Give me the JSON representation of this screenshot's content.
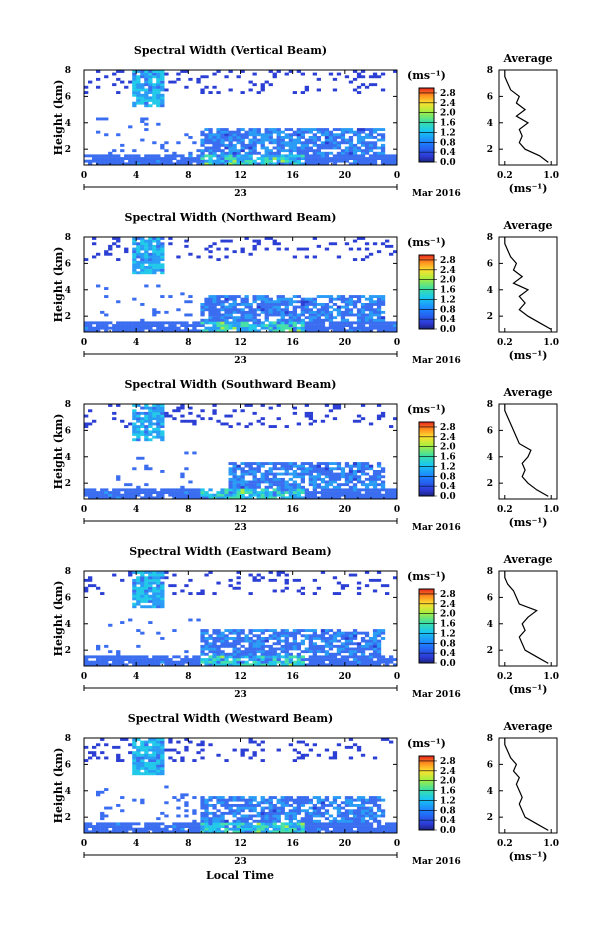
{
  "figure": {
    "xlabel": "Local Time",
    "date_day": "23",
    "date_month": "Mar 2016",
    "ylabel": "Height (km)",
    "cb_unit": "(ms⁻¹)",
    "avg_title": "Average",
    "avg_xlabel": "(ms⁻¹)"
  },
  "chart_data": [
    {
      "type": "heatmap",
      "title": "Spectral Width (Vertical Beam)",
      "xlabel": "Local Time",
      "ylabel": "Height (km)",
      "x_ticks": [
        "0",
        "4",
        "8",
        "12",
        "16",
        "20",
        "0"
      ],
      "y_ticks": [
        "2",
        "4",
        "6",
        "8"
      ],
      "xlim": [
        0,
        24
      ],
      "ylim": [
        0.8,
        8
      ],
      "colorbar": {
        "label": "(ms⁻¹)",
        "ticks": [
          "0.0",
          "0.4",
          "0.8",
          "1.2",
          "1.6",
          "2.0",
          "2.4",
          "2.8"
        ],
        "range": [
          0,
          3.0
        ]
      },
      "average_profile": {
        "title": "Average",
        "xlabel": "(ms⁻¹)",
        "x_ticks": [
          "0.2",
          "1.0"
        ],
        "y_ticks": [
          "2",
          "4",
          "6",
          "8"
        ],
        "xlim": [
          0.1,
          1.1
        ],
        "ylim": [
          0.8,
          8
        ],
        "height": [
          1.0,
          1.5,
          2.0,
          2.5,
          3.0,
          3.5,
          4.0,
          4.5,
          5.0,
          5.5,
          6.0,
          6.5,
          7.0,
          7.5,
          8.0
        ],
        "value": [
          0.95,
          0.8,
          0.55,
          0.45,
          0.5,
          0.45,
          0.6,
          0.4,
          0.55,
          0.4,
          0.45,
          0.3,
          0.25,
          0.2,
          0.2
        ]
      }
    },
    {
      "type": "heatmap",
      "title": "Spectral Width (Northward Beam)",
      "xlabel": "Local Time",
      "ylabel": "Height (km)",
      "x_ticks": [
        "0",
        "4",
        "8",
        "12",
        "16",
        "20",
        "0"
      ],
      "y_ticks": [
        "2",
        "4",
        "6",
        "8"
      ],
      "xlim": [
        0,
        24
      ],
      "ylim": [
        0.8,
        8
      ],
      "colorbar": {
        "label": "(ms⁻¹)",
        "ticks": [
          "0.0",
          "0.4",
          "0.8",
          "1.2",
          "1.6",
          "2.0",
          "2.4",
          "2.8"
        ],
        "range": [
          0,
          3.0
        ]
      },
      "average_profile": {
        "title": "Average",
        "xlabel": "(ms⁻¹)",
        "x_ticks": [
          "0.2",
          "1.0"
        ],
        "y_ticks": [
          "2",
          "4",
          "6",
          "8"
        ],
        "xlim": [
          0.1,
          1.1
        ],
        "ylim": [
          0.8,
          8
        ],
        "height": [
          1.0,
          1.5,
          2.0,
          2.5,
          3.0,
          3.5,
          4.0,
          4.5,
          5.0,
          5.5,
          6.0,
          6.5,
          7.0,
          7.5,
          8.0
        ],
        "value": [
          1.0,
          0.8,
          0.6,
          0.45,
          0.55,
          0.45,
          0.6,
          0.35,
          0.5,
          0.35,
          0.4,
          0.3,
          0.25,
          0.2,
          0.2
        ]
      }
    },
    {
      "type": "heatmap",
      "title": "Spectral Width (Southward Beam)",
      "xlabel": "Local Time",
      "ylabel": "Height (km)",
      "x_ticks": [
        "0",
        "4",
        "8",
        "12",
        "16",
        "20",
        "0"
      ],
      "y_ticks": [
        "2",
        "4",
        "6",
        "8"
      ],
      "xlim": [
        0,
        24
      ],
      "ylim": [
        0.8,
        8
      ],
      "colorbar": {
        "label": "(ms⁻¹)",
        "ticks": [
          "0.0",
          "0.4",
          "0.8",
          "1.2",
          "1.6",
          "2.0",
          "2.4",
          "2.8"
        ],
        "range": [
          0,
          3.0
        ]
      },
      "average_profile": {
        "title": "Average",
        "xlabel": "(ms⁻¹)",
        "x_ticks": [
          "0.2",
          "1.0"
        ],
        "y_ticks": [
          "2",
          "4",
          "6",
          "8"
        ],
        "xlim": [
          0.1,
          1.1
        ],
        "ylim": [
          0.8,
          8
        ],
        "height": [
          1.0,
          1.5,
          2.0,
          2.5,
          3.0,
          3.5,
          4.0,
          4.5,
          5.0,
          5.5,
          6.0,
          6.5,
          7.0,
          7.5,
          8.0
        ],
        "value": [
          0.95,
          0.75,
          0.6,
          0.5,
          0.55,
          0.5,
          0.6,
          0.65,
          0.45,
          0.4,
          0.35,
          0.3,
          0.25,
          0.2,
          0.2
        ]
      }
    },
    {
      "type": "heatmap",
      "title": "Spectral Width (Eastward Beam)",
      "xlabel": "Local Time",
      "ylabel": "Height (km)",
      "x_ticks": [
        "0",
        "4",
        "8",
        "12",
        "16",
        "20",
        "0"
      ],
      "y_ticks": [
        "2",
        "4",
        "6",
        "8"
      ],
      "xlim": [
        0,
        24
      ],
      "ylim": [
        0.8,
        8
      ],
      "colorbar": {
        "label": "(ms⁻¹)",
        "ticks": [
          "0.0",
          "0.4",
          "0.8",
          "1.2",
          "1.6",
          "2.0",
          "2.4",
          "2.8"
        ],
        "range": [
          0,
          3.0
        ]
      },
      "average_profile": {
        "title": "Average",
        "xlabel": "(ms⁻¹)",
        "x_ticks": [
          "0.2",
          "1.0"
        ],
        "y_ticks": [
          "2",
          "4",
          "6",
          "8"
        ],
        "xlim": [
          0.1,
          1.1
        ],
        "ylim": [
          0.8,
          8
        ],
        "height": [
          1.0,
          1.5,
          2.0,
          2.5,
          3.0,
          3.5,
          4.0,
          4.5,
          5.0,
          5.5,
          6.0,
          6.5,
          7.0,
          7.5,
          8.0
        ],
        "value": [
          0.95,
          0.75,
          0.55,
          0.5,
          0.45,
          0.55,
          0.5,
          0.6,
          0.75,
          0.45,
          0.4,
          0.35,
          0.25,
          0.2,
          0.2
        ]
      }
    },
    {
      "type": "heatmap",
      "title": "Spectral Width (Westward Beam)",
      "xlabel": "Local Time",
      "ylabel": "Height (km)",
      "x_ticks": [
        "0",
        "4",
        "8",
        "12",
        "16",
        "20",
        "0"
      ],
      "y_ticks": [
        "2",
        "4",
        "6",
        "8"
      ],
      "xlim": [
        0,
        24
      ],
      "ylim": [
        0.8,
        8
      ],
      "colorbar": {
        "label": "(ms⁻¹)",
        "ticks": [
          "0.0",
          "0.4",
          "0.8",
          "1.2",
          "1.6",
          "2.0",
          "2.4",
          "2.8"
        ],
        "range": [
          0,
          3.0
        ]
      },
      "average_profile": {
        "title": "Average",
        "xlabel": "(ms⁻¹)",
        "x_ticks": [
          "0.2",
          "1.0"
        ],
        "y_ticks": [
          "2",
          "4",
          "6",
          "8"
        ],
        "xlim": [
          0.1,
          1.1
        ],
        "ylim": [
          0.8,
          8
        ],
        "height": [
          1.0,
          1.5,
          2.0,
          2.5,
          3.0,
          3.5,
          4.0,
          4.5,
          5.0,
          5.5,
          6.0,
          6.5,
          7.0,
          7.5,
          8.0
        ],
        "value": [
          0.95,
          0.75,
          0.55,
          0.5,
          0.45,
          0.5,
          0.45,
          0.4,
          0.45,
          0.35,
          0.4,
          0.3,
          0.25,
          0.2,
          0.2
        ]
      }
    }
  ]
}
